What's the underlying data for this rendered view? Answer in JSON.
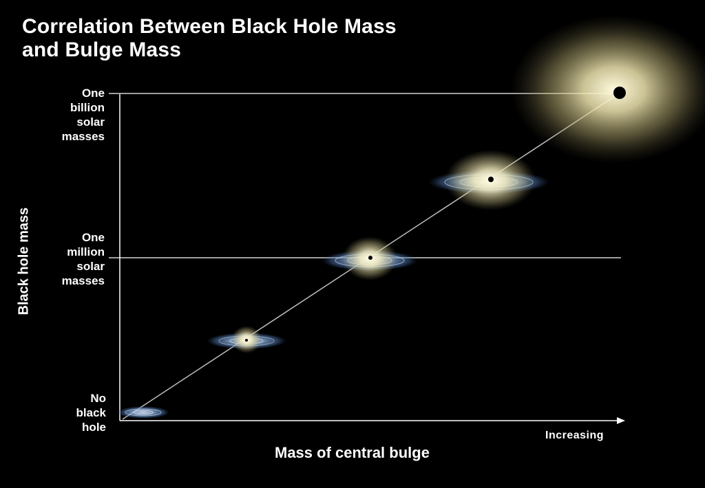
{
  "title_line1": "Correlation Between Black Hole Mass",
  "title_line2": "and Bulge Mass",
  "y_axis_label": "Black hole mass",
  "x_axis_label": "Mass of central bulge",
  "x_axis_note": "Increasing",
  "y_ticks": {
    "billion": [
      "One",
      "billion",
      "solar",
      "masses"
    ],
    "million": [
      "One",
      "million",
      "solar",
      "masses"
    ],
    "none": [
      "No",
      "black",
      "hole"
    ]
  },
  "colors": {
    "background": "#000000",
    "axis": "#ffffff",
    "disk": "#8fb3e0",
    "bulge": "#f3ecc0"
  },
  "galaxies": [
    {
      "name": "bulgeless disk galaxy",
      "bulge": 0.0,
      "black_hole": 0
    },
    {
      "name": "small bulge galaxy",
      "bulge": 0.25,
      "black_hole": 0.25
    },
    {
      "name": "medium bulge galaxy",
      "bulge": 0.5,
      "black_hole": 0.5
    },
    {
      "name": "large bulge galaxy",
      "bulge": 0.75,
      "black_hole": 0.75
    },
    {
      "name": "elliptical galaxy",
      "bulge": 1.0,
      "black_hole": 1.0
    }
  ]
}
